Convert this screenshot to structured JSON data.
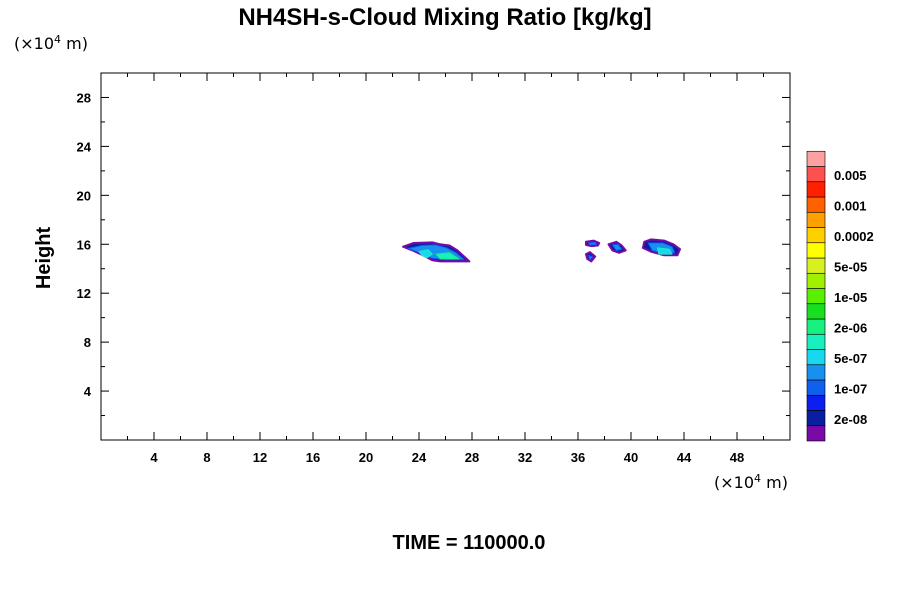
{
  "chart_data": {
    "type": "heatmap",
    "title": "NH4SH-s-Cloud Mixing Ratio [kg/kg]",
    "ylabel": "Height",
    "y_unit_text": "(×10",
    "y_unit_exp": "4",
    "y_unit_suffix": " m)",
    "x_unit_text": "(×10",
    "x_unit_exp": "4",
    "x_unit_suffix": " m)",
    "xlim": [
      0,
      52
    ],
    "ylim": [
      0,
      30
    ],
    "x_ticks": [
      "4",
      "8",
      "12",
      "16",
      "20",
      "24",
      "28",
      "32",
      "36",
      "40",
      "44",
      "48"
    ],
    "y_ticks": [
      "4",
      "8",
      "12",
      "16",
      "20",
      "24",
      "28"
    ],
    "colorbar": {
      "colors": [
        "#7a0aa8",
        "#0a1fa0",
        "#0a1ff0",
        "#1060f0",
        "#1890f0",
        "#18d8f0",
        "#18f0c0",
        "#18f080",
        "#18e020",
        "#58f000",
        "#a0f000",
        "#d8f020",
        "#ffff00",
        "#ffd000",
        "#ffa000",
        "#ff6000",
        "#ff2000",
        "#ff5050",
        "#ffa0a0"
      ],
      "labels": [
        "2e-08",
        "1e-07",
        "5e-07",
        "2e-06",
        "1e-05",
        "5e-05",
        "0.0002",
        "0.001",
        "0.005"
      ]
    },
    "clouds": [
      {
        "name": "cloud-left",
        "outer": [
          [
            22.8,
            15.8
          ],
          [
            23.6,
            16.1
          ],
          [
            25.0,
            16.15
          ],
          [
            25.6,
            16.0
          ],
          [
            26.3,
            15.9
          ],
          [
            26.9,
            15.5
          ],
          [
            27.4,
            15.0
          ],
          [
            27.8,
            14.6
          ],
          [
            26.5,
            14.6
          ],
          [
            25.6,
            14.6
          ],
          [
            25.0,
            14.7
          ],
          [
            24.3,
            15.1
          ],
          [
            23.5,
            15.5
          ]
        ],
        "mid": [
          [
            23.2,
            15.65
          ],
          [
            24.2,
            15.9
          ],
          [
            25.2,
            15.95
          ],
          [
            26.1,
            15.7
          ],
          [
            26.8,
            15.3
          ],
          [
            27.4,
            14.75
          ],
          [
            26.0,
            14.75
          ],
          [
            25.0,
            14.85
          ],
          [
            24.1,
            15.3
          ]
        ],
        "core": [
          [
            24.0,
            15.4
          ],
          [
            24.7,
            15.55
          ],
          [
            25.0,
            15.2
          ],
          [
            24.6,
            14.9
          ],
          [
            24.2,
            15.1
          ]
        ],
        "core2": [
          [
            25.3,
            15.2
          ],
          [
            26.3,
            15.3
          ],
          [
            27.0,
            14.8
          ],
          [
            25.6,
            14.8
          ]
        ]
      },
      {
        "name": "cloud-small-a",
        "outer": [
          [
            36.6,
            16.2
          ],
          [
            37.2,
            16.3
          ],
          [
            37.6,
            16.1
          ],
          [
            37.5,
            15.9
          ],
          [
            37.0,
            15.85
          ],
          [
            36.6,
            15.95
          ]
        ],
        "mid": [
          [
            36.8,
            16.1
          ],
          [
            37.3,
            16.15
          ],
          [
            37.4,
            16.0
          ],
          [
            36.9,
            15.95
          ]
        ]
      },
      {
        "name": "cloud-small-b",
        "outer": [
          [
            36.6,
            15.2
          ],
          [
            36.9,
            15.35
          ],
          [
            37.3,
            15.0
          ],
          [
            37.0,
            14.6
          ],
          [
            36.7,
            14.8
          ]
        ],
        "mid": [
          [
            36.8,
            15.1
          ],
          [
            37.1,
            14.95
          ],
          [
            36.9,
            14.75
          ]
        ]
      },
      {
        "name": "cloud-mid",
        "outer": [
          [
            38.3,
            16.0
          ],
          [
            38.9,
            16.2
          ],
          [
            39.3,
            15.9
          ],
          [
            39.6,
            15.5
          ],
          [
            39.1,
            15.3
          ],
          [
            38.6,
            15.5
          ]
        ],
        "mid": [
          [
            38.6,
            15.95
          ],
          [
            39.0,
            16.0
          ],
          [
            39.3,
            15.6
          ],
          [
            38.9,
            15.5
          ]
        ]
      },
      {
        "name": "cloud-right",
        "outer": [
          [
            41.0,
            16.2
          ],
          [
            41.5,
            16.4
          ],
          [
            42.5,
            16.3
          ],
          [
            43.2,
            16.0
          ],
          [
            43.7,
            15.6
          ],
          [
            43.5,
            15.1
          ],
          [
            42.5,
            15.1
          ],
          [
            41.5,
            15.4
          ],
          [
            40.9,
            15.7
          ]
        ],
        "mid": [
          [
            41.3,
            16.1
          ],
          [
            42.4,
            16.1
          ],
          [
            43.1,
            15.8
          ],
          [
            43.3,
            15.3
          ],
          [
            42.5,
            15.25
          ],
          [
            41.6,
            15.5
          ]
        ],
        "core": [
          [
            42.0,
            15.7
          ],
          [
            42.9,
            15.6
          ],
          [
            43.1,
            15.2
          ],
          [
            42.1,
            15.2
          ]
        ]
      }
    ]
  },
  "time_label": "TIME = 110000.0"
}
